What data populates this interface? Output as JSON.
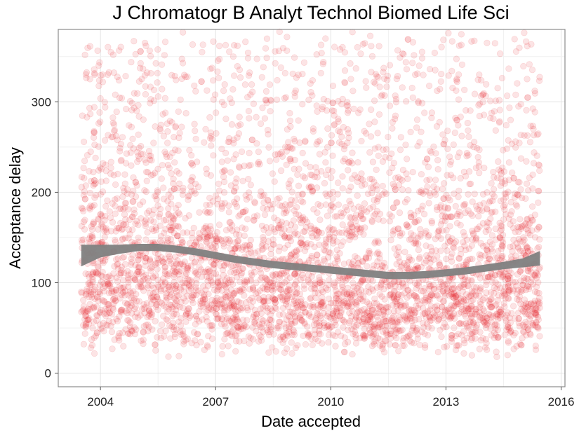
{
  "chart_data": {
    "type": "scatter",
    "title": "J Chromatogr B Analyt Technol Biomed Life Sci",
    "xlabel": "Date accepted",
    "ylabel": "Acceptance delay",
    "xlim": [
      2002.9,
      2016.1
    ],
    "ylim": [
      -15,
      380
    ],
    "x_ticks": [
      2004,
      2007,
      2010,
      2013,
      2016
    ],
    "y_ticks": [
      0,
      100,
      200,
      300
    ],
    "grid": true,
    "point_color": "#e8232a",
    "point_opacity": 0.12,
    "smooth_color": "#7f7f7f",
    "n_points": 4200,
    "x_range_of_points": [
      2003.5,
      2015.45
    ],
    "smooth_fit": {
      "x": [
        2003.5,
        2004.0,
        2004.5,
        2005.0,
        2005.5,
        2006.0,
        2006.5,
        2007.0,
        2007.5,
        2008.0,
        2008.5,
        2009.0,
        2009.5,
        2010.0,
        2010.5,
        2011.0,
        2011.5,
        2012.0,
        2012.5,
        2013.0,
        2013.5,
        2014.0,
        2014.5,
        2015.0,
        2015.45
      ],
      "y": [
        130,
        135,
        137,
        139,
        139,
        137,
        134,
        130,
        126,
        123,
        120,
        118,
        116,
        114,
        112,
        110,
        108,
        108,
        109,
        111,
        113,
        116,
        119,
        122,
        127
      ],
      "se": [
        12,
        7,
        5,
        4,
        4,
        4,
        4,
        4,
        4,
        4,
        4,
        4,
        4,
        4,
        4,
        4,
        4,
        4,
        4,
        4,
        4,
        4,
        4,
        5,
        8
      ]
    }
  }
}
